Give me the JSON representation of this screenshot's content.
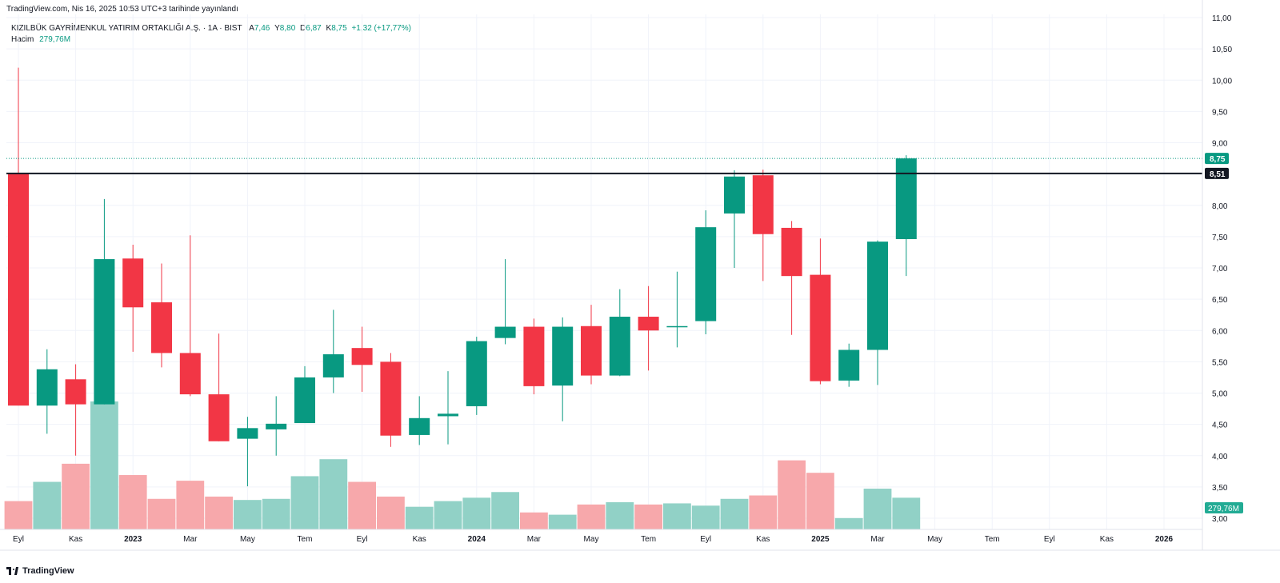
{
  "publish_line": "TradingView.com, Nis 16, 2025 10:53 UTC+3 tarihinde yayınlandı",
  "legend": {
    "symbol": "KIZILBÜK GAYRİMENKUL YATIRIM ORTAKLIĞI A.Ş. · 1A · BIST",
    "open_label": "A",
    "open": "7,46",
    "high_label": "Y",
    "high": "8,80",
    "low_label": "D",
    "low": "6,87",
    "close_label": "K",
    "close": "8,75",
    "change": "+1,32 (+17,77%)",
    "volume_label": "Hacim",
    "volume": "279,76M"
  },
  "logo_text": "TradingView",
  "colors": {
    "up": "#089981",
    "down": "#f23645",
    "up_vol": "#91d1c6",
    "down_vol": "#f7a8ab",
    "grid": "#f0f3fa",
    "text": "#131722"
  },
  "chart_data": {
    "type": "candlestick",
    "interval": "monthly",
    "price_axis": {
      "ticks": [
        3.0,
        3.5,
        4.0,
        4.5,
        5.0,
        5.5,
        6.0,
        6.5,
        7.0,
        7.5,
        8.0,
        8.5,
        9.0,
        9.5,
        10.0,
        10.5,
        11.0
      ],
      "tick_labels": [
        "3,00",
        "3,50",
        "4,00",
        "4,50",
        "5,00",
        "5,50",
        "6,00",
        "6,50",
        "7,00",
        "7,50",
        "8,00",
        "8,50",
        "9,00",
        "9,50",
        "10,00",
        "10,50",
        "11,00"
      ],
      "range": [
        2.95,
        11.05
      ]
    },
    "time_axis": {
      "labels": [
        "Eyl",
        "Kas",
        "2023",
        "Mar",
        "May",
        "Tem",
        "Eyl",
        "Kas",
        "2024",
        "Mar",
        "May",
        "Tem",
        "Eyl",
        "Kas",
        "2025",
        "Mar",
        "May",
        "Tem",
        "Eyl",
        "Kas",
        "2026"
      ],
      "bold": [
        "2023",
        "2024",
        "2025",
        "2026"
      ],
      "label_month_index": [
        0,
        2,
        4,
        6,
        8,
        10,
        12,
        14,
        16,
        18,
        20,
        22,
        24,
        26,
        28,
        30,
        32,
        34,
        36,
        38,
        40
      ],
      "total_months": 41
    },
    "candles": [
      {
        "month": "Eyl 2022",
        "open": 8.5,
        "high": 10.2,
        "low": 4.8,
        "close": 4.8,
        "volume": 0.25
      },
      {
        "month": "Eki 2022",
        "open": 4.8,
        "high": 5.7,
        "low": 4.35,
        "close": 5.38,
        "volume": 0.42
      },
      {
        "month": "Kas 2022",
        "open": 5.22,
        "high": 5.46,
        "low": 4.0,
        "close": 4.82,
        "volume": 0.58
      },
      {
        "month": "Ara 2022",
        "open": 4.82,
        "high": 8.1,
        "low": 4.82,
        "close": 7.14,
        "volume": 1.13
      },
      {
        "month": "Oca 2023",
        "open": 7.15,
        "high": 7.37,
        "low": 5.66,
        "close": 6.37,
        "volume": 0.48
      },
      {
        "month": "Şub 2023",
        "open": 6.45,
        "high": 7.07,
        "low": 5.41,
        "close": 5.64,
        "volume": 0.27
      },
      {
        "month": "Mar 2023",
        "open": 5.64,
        "high": 7.52,
        "low": 4.95,
        "close": 4.98,
        "volume": 0.43
      },
      {
        "month": "Nis 2023",
        "open": 4.98,
        "high": 5.95,
        "low": 4.23,
        "close": 4.23,
        "volume": 0.29
      },
      {
        "month": "May 2023",
        "open": 4.27,
        "high": 4.62,
        "low": 3.51,
        "close": 4.44,
        "volume": 0.26
      },
      {
        "month": "Haz 2023",
        "open": 4.42,
        "high": 4.95,
        "low": 4.0,
        "close": 4.51,
        "volume": 0.27
      },
      {
        "month": "Tem 2023",
        "open": 4.52,
        "high": 5.43,
        "low": 4.52,
        "close": 5.25,
        "volume": 0.47
      },
      {
        "month": "Ağu 2023",
        "open": 5.25,
        "high": 6.33,
        "low": 5.0,
        "close": 5.62,
        "volume": 0.62
      },
      {
        "month": "Eyl 2023",
        "open": 5.72,
        "high": 6.06,
        "low": 5.02,
        "close": 5.45,
        "volume": 0.42
      },
      {
        "month": "Eki 2023",
        "open": 5.5,
        "high": 5.64,
        "low": 4.14,
        "close": 4.32,
        "volume": 0.29
      },
      {
        "month": "Kas 2023",
        "open": 4.33,
        "high": 4.95,
        "low": 4.17,
        "close": 4.6,
        "volume": 0.2
      },
      {
        "month": "Ara 2023",
        "open": 4.63,
        "high": 5.35,
        "low": 4.18,
        "close": 4.67,
        "volume": 0.25
      },
      {
        "month": "Oca 2024",
        "open": 4.79,
        "high": 5.9,
        "low": 4.65,
        "close": 5.83,
        "volume": 0.28
      },
      {
        "month": "Şub 2024",
        "open": 5.88,
        "high": 7.14,
        "low": 5.78,
        "close": 6.06,
        "volume": 0.33
      },
      {
        "month": "Mar 2024",
        "open": 6.06,
        "high": 6.19,
        "low": 4.98,
        "close": 5.11,
        "volume": 0.15
      },
      {
        "month": "Nis 2024",
        "open": 5.12,
        "high": 6.21,
        "low": 4.55,
        "close": 6.06,
        "volume": 0.13
      },
      {
        "month": "May 2024",
        "open": 6.07,
        "high": 6.41,
        "low": 5.14,
        "close": 5.28,
        "volume": 0.22
      },
      {
        "month": "Haz 2024",
        "open": 5.28,
        "high": 6.66,
        "low": 5.27,
        "close": 6.22,
        "volume": 0.24
      },
      {
        "month": "Tem 2024",
        "open": 6.22,
        "high": 6.71,
        "low": 5.36,
        "close": 6.0,
        "volume": 0.22
      },
      {
        "month": "Ağu 2024",
        "open": 6.06,
        "high": 6.94,
        "low": 5.73,
        "close": 6.07,
        "volume": 0.23
      },
      {
        "month": "Eyl 2024",
        "open": 6.15,
        "high": 7.92,
        "low": 5.94,
        "close": 7.65,
        "volume": 0.21
      },
      {
        "month": "Eki 2024",
        "open": 7.87,
        "high": 8.56,
        "low": 7.0,
        "close": 8.46,
        "volume": 0.27
      },
      {
        "month": "Kas 2024",
        "open": 8.48,
        "high": 8.57,
        "low": 6.79,
        "close": 7.54,
        "volume": 0.3
      },
      {
        "month": "Ara 2024",
        "open": 7.64,
        "high": 7.75,
        "low": 5.93,
        "close": 6.87,
        "volume": 0.61
      },
      {
        "month": "Oca 2025",
        "open": 6.89,
        "high": 7.47,
        "low": 5.14,
        "close": 5.19,
        "volume": 0.5
      },
      {
        "month": "Şub 2025",
        "open": 5.2,
        "high": 5.79,
        "low": 5.1,
        "close": 5.69,
        "volume": 0.1
      },
      {
        "month": "Mar 2025",
        "open": 5.69,
        "high": 7.44,
        "low": 5.13,
        "close": 7.42,
        "volume": 0.36
      },
      {
        "month": "Nis 2025",
        "open": 7.46,
        "high": 8.8,
        "low": 6.87,
        "close": 8.75,
        "volume": 0.28
      }
    ],
    "horizontal_line": {
      "price": 8.51,
      "label": "8,51"
    },
    "last_price": {
      "price": 8.75,
      "label": "8,75"
    },
    "volume_label": "279,76M"
  }
}
